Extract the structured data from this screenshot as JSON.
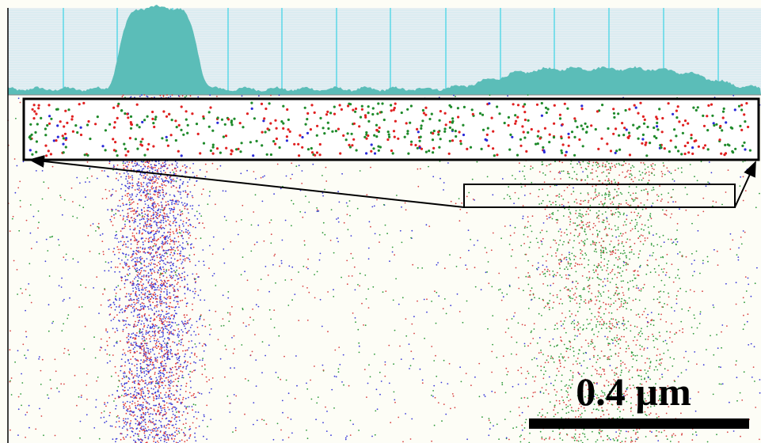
{
  "scale_bar": {
    "label": "0.4 µm"
  }
}
